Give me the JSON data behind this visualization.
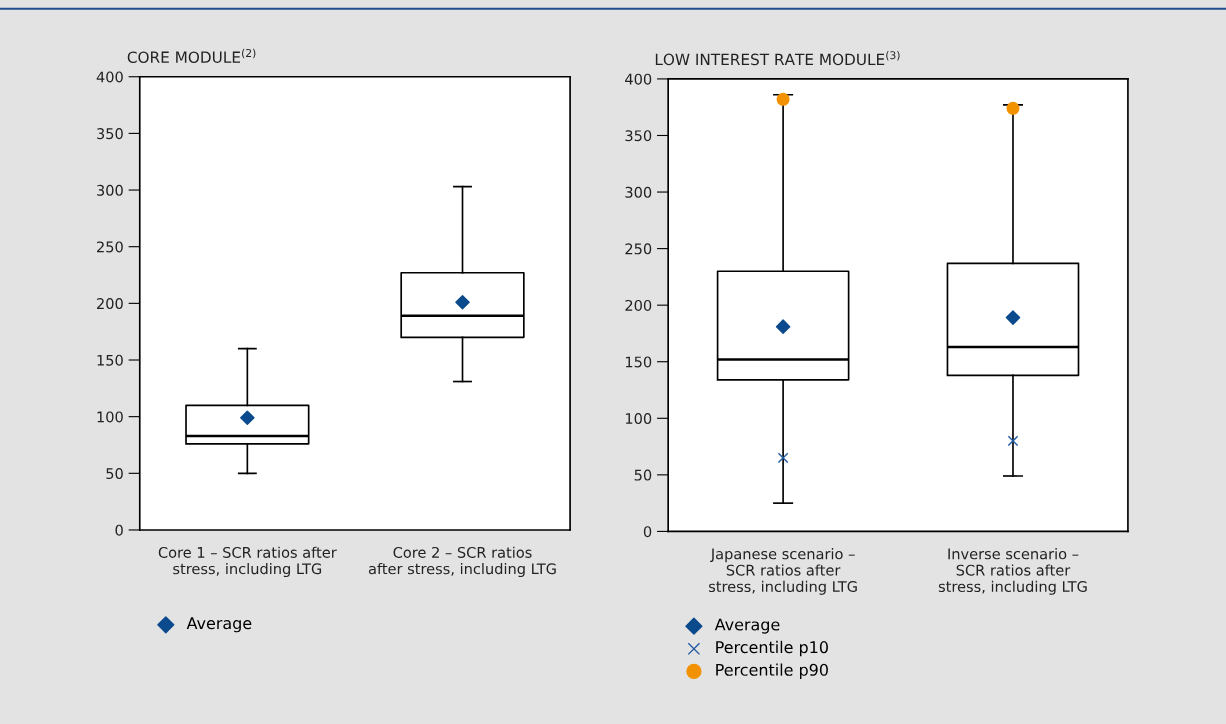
{
  "chart_data": [
    {
      "type": "box",
      "title": "CORE MODULE$^{(2)}$",
      "categories": [
        "Core 1 – SCR ratios after\nstress, including LTG",
        "Core 2 – SCR ratios\nafter stress, including LTG"
      ],
      "boxes": [
        {
          "low": 50,
          "q1": 76,
          "median": 83,
          "q3": 110,
          "high": 160
        },
        {
          "low": 131,
          "q1": 170,
          "median": 189,
          "q3": 227,
          "high": 303
        }
      ],
      "series": [
        {
          "name": "Average",
          "type": "scatter",
          "marker": "diamond",
          "color": "#0b4a8c",
          "values": [
            99,
            201
          ]
        }
      ],
      "ylim": [
        0,
        400
      ],
      "yticks": [
        0,
        50,
        100,
        150,
        200,
        250,
        300,
        350,
        400
      ],
      "legend": "bottom left"
    },
    {
      "type": "box",
      "title": "LOW INTEREST RATE MODULE$^{(3)}$",
      "categories": [
        "Japanese scenario –\nSCR ratios after\nstress, including LTG",
        "Inverse scenario –\nSCR ratios after\nstress, including LTG"
      ],
      "boxes": [
        {
          "low": 25,
          "q1": 134,
          "median": 152,
          "q3": 230,
          "high": 386
        },
        {
          "low": 49,
          "q1": 138,
          "median": 163,
          "q3": 237,
          "high": 377
        }
      ],
      "series": [
        {
          "name": "Average",
          "type": "scatter",
          "marker": "diamond",
          "color": "#0b4a8c",
          "values": [
            181,
            189
          ]
        },
        {
          "name": "Percentile p10",
          "type": "scatter",
          "marker": "cross",
          "color": "#1f5aa0",
          "values": [
            65,
            80
          ]
        },
        {
          "name": "Percentile p90",
          "type": "scatter",
          "marker": "circle",
          "color": "#f39200",
          "values": [
            382,
            374
          ]
        }
      ],
      "ylim": [
        0,
        400
      ],
      "yticks": [
        0,
        50,
        100,
        150,
        200,
        250,
        300,
        350,
        400
      ],
      "legend": "bottom left"
    }
  ]
}
